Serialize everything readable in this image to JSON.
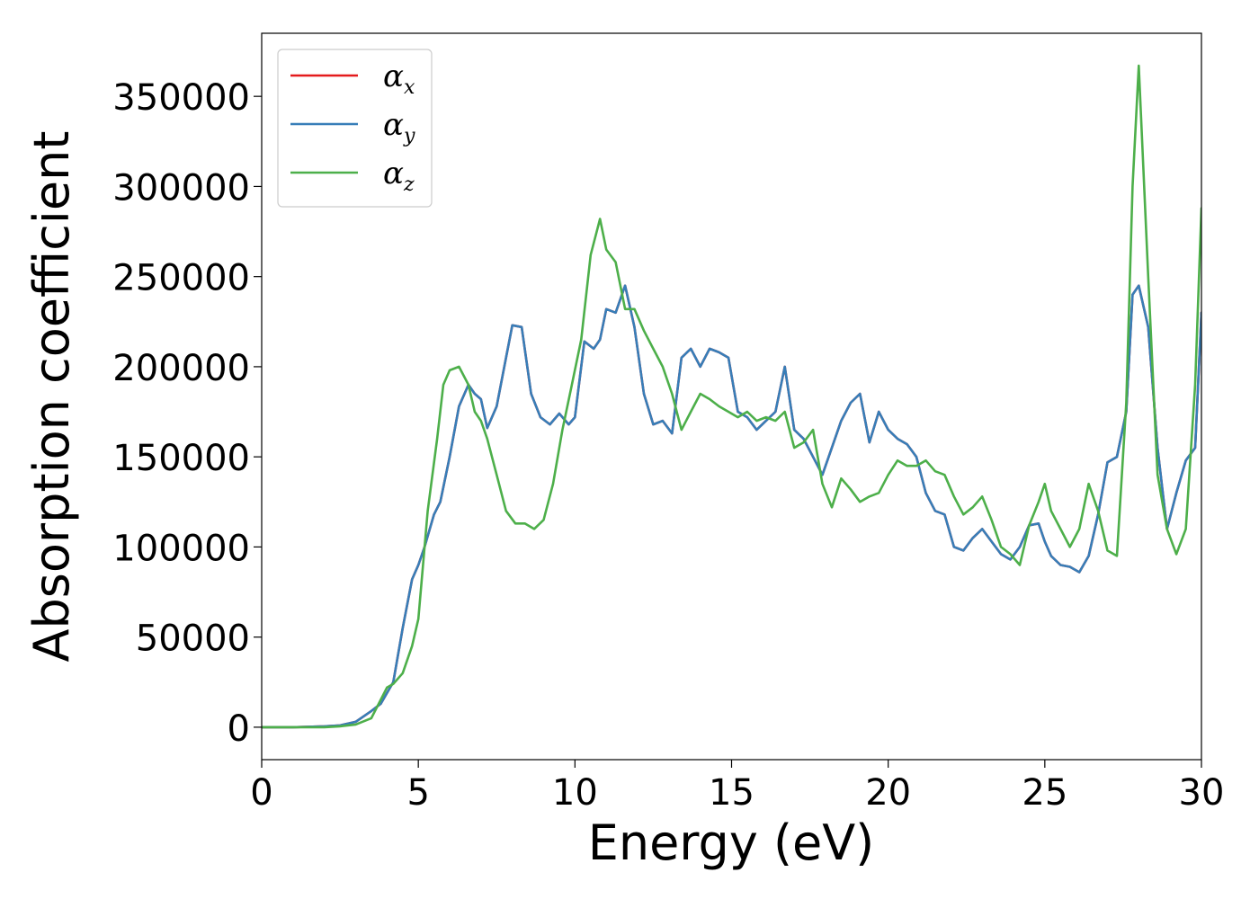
{
  "chart_data": {
    "type": "line",
    "title": "",
    "xlabel": "Energy (eV)",
    "ylabel": "Absorption coefficient",
    "xlim": [
      0,
      30
    ],
    "ylim": [
      -18000,
      385000
    ],
    "x_ticks": [
      0,
      5,
      10,
      15,
      20,
      25,
      30
    ],
    "y_ticks": [
      0,
      50000,
      100000,
      150000,
      200000,
      250000,
      300000,
      350000
    ],
    "grid": false,
    "legend_position": "top-left",
    "series": [
      {
        "name": "α_x",
        "label_base": "α",
        "label_sub": "x",
        "color": "#e41a1c",
        "x": [
          0,
          1,
          2,
          2.5,
          3,
          3.5,
          3.8,
          4.2,
          4.5,
          4.8,
          5.0,
          5.2,
          5.5,
          5.7,
          6.0,
          6.3,
          6.6,
          6.8,
          7.0,
          7.2,
          7.5,
          7.8,
          8.0,
          8.3,
          8.6,
          8.9,
          9.2,
          9.5,
          9.8,
          10.0,
          10.3,
          10.6,
          10.8,
          11.0,
          11.3,
          11.6,
          11.9,
          12.2,
          12.5,
          12.8,
          13.1,
          13.4,
          13.7,
          14.0,
          14.3,
          14.6,
          14.9,
          15.2,
          15.5,
          15.8,
          16.1,
          16.4,
          16.7,
          17.0,
          17.3,
          17.6,
          17.9,
          18.2,
          18.5,
          18.8,
          19.1,
          19.4,
          19.7,
          20.0,
          20.3,
          20.6,
          20.9,
          21.2,
          21.5,
          21.8,
          22.1,
          22.4,
          22.7,
          23.0,
          23.3,
          23.6,
          23.9,
          24.2,
          24.5,
          24.8,
          25.0,
          25.2,
          25.5,
          25.8,
          26.1,
          26.4,
          26.7,
          27.0,
          27.3,
          27.6,
          27.8,
          28.0,
          28.3,
          28.6,
          28.9,
          29.2,
          29.5,
          29.8,
          30.0
        ],
        "values": [
          0,
          0,
          500,
          1000,
          3000,
          9000,
          13000,
          25000,
          55000,
          82000,
          90000,
          100000,
          118000,
          125000,
          150000,
          178000,
          190000,
          185000,
          182000,
          166000,
          178000,
          205000,
          223000,
          222000,
          185000,
          172000,
          168000,
          174000,
          168000,
          172000,
          214000,
          210000,
          215000,
          232000,
          230000,
          245000,
          222000,
          185000,
          168000,
          170000,
          163000,
          205000,
          210000,
          200000,
          210000,
          208000,
          205000,
          175000,
          172000,
          165000,
          170000,
          175000,
          200000,
          165000,
          160000,
          150000,
          140000,
          155000,
          170000,
          180000,
          185000,
          158000,
          175000,
          165000,
          160000,
          157000,
          150000,
          130000,
          120000,
          118000,
          100000,
          98000,
          105000,
          110000,
          103000,
          96000,
          93000,
          100000,
          112000,
          113000,
          103000,
          95000,
          90000,
          89000,
          86000,
          95000,
          118000,
          147000,
          150000,
          175000,
          240000,
          245000,
          222000,
          155000,
          110000,
          130000,
          148000,
          155000,
          230000
        ]
      },
      {
        "name": "α_y",
        "label_base": "α",
        "label_sub": "y",
        "color": "#377eb8",
        "x": [
          0,
          1,
          2,
          2.5,
          3,
          3.5,
          3.8,
          4.2,
          4.5,
          4.8,
          5.0,
          5.2,
          5.5,
          5.7,
          6.0,
          6.3,
          6.6,
          6.8,
          7.0,
          7.2,
          7.5,
          7.8,
          8.0,
          8.3,
          8.6,
          8.9,
          9.2,
          9.5,
          9.8,
          10.0,
          10.3,
          10.6,
          10.8,
          11.0,
          11.3,
          11.6,
          11.9,
          12.2,
          12.5,
          12.8,
          13.1,
          13.4,
          13.7,
          14.0,
          14.3,
          14.6,
          14.9,
          15.2,
          15.5,
          15.8,
          16.1,
          16.4,
          16.7,
          17.0,
          17.3,
          17.6,
          17.9,
          18.2,
          18.5,
          18.8,
          19.1,
          19.4,
          19.7,
          20.0,
          20.3,
          20.6,
          20.9,
          21.2,
          21.5,
          21.8,
          22.1,
          22.4,
          22.7,
          23.0,
          23.3,
          23.6,
          23.9,
          24.2,
          24.5,
          24.8,
          25.0,
          25.2,
          25.5,
          25.8,
          26.1,
          26.4,
          26.7,
          27.0,
          27.3,
          27.6,
          27.8,
          28.0,
          28.3,
          28.6,
          28.9,
          29.2,
          29.5,
          29.8,
          30.0
        ],
        "values": [
          0,
          0,
          500,
          1000,
          3000,
          9000,
          13000,
          25000,
          55000,
          82000,
          90000,
          100000,
          118000,
          125000,
          150000,
          178000,
          190000,
          185000,
          182000,
          166000,
          178000,
          205000,
          223000,
          222000,
          185000,
          172000,
          168000,
          174000,
          168000,
          172000,
          214000,
          210000,
          215000,
          232000,
          230000,
          245000,
          222000,
          185000,
          168000,
          170000,
          163000,
          205000,
          210000,
          200000,
          210000,
          208000,
          205000,
          175000,
          172000,
          165000,
          170000,
          175000,
          200000,
          165000,
          160000,
          150000,
          140000,
          155000,
          170000,
          180000,
          185000,
          158000,
          175000,
          165000,
          160000,
          157000,
          150000,
          130000,
          120000,
          118000,
          100000,
          98000,
          105000,
          110000,
          103000,
          96000,
          93000,
          100000,
          112000,
          113000,
          103000,
          95000,
          90000,
          89000,
          86000,
          95000,
          118000,
          147000,
          150000,
          175000,
          240000,
          245000,
          222000,
          155000,
          110000,
          130000,
          148000,
          155000,
          230000
        ]
      },
      {
        "name": "α_z",
        "label_base": "α",
        "label_sub": "z",
        "color": "#4daf4a",
        "x": [
          0,
          1,
          2,
          2.5,
          3,
          3.5,
          4.0,
          4.2,
          4.5,
          4.8,
          5.0,
          5.3,
          5.6,
          5.8,
          6.0,
          6.3,
          6.6,
          6.8,
          7.0,
          7.2,
          7.5,
          7.8,
          8.1,
          8.4,
          8.7,
          9.0,
          9.3,
          9.6,
          9.9,
          10.2,
          10.5,
          10.8,
          11.0,
          11.3,
          11.6,
          11.9,
          12.2,
          12.5,
          12.8,
          13.1,
          13.4,
          13.7,
          14.0,
          14.3,
          14.6,
          14.9,
          15.2,
          15.5,
          15.8,
          16.1,
          16.4,
          16.7,
          17.0,
          17.3,
          17.6,
          17.9,
          18.2,
          18.5,
          18.8,
          19.1,
          19.4,
          19.7,
          20.0,
          20.3,
          20.6,
          20.9,
          21.2,
          21.5,
          21.8,
          22.1,
          22.4,
          22.7,
          23.0,
          23.3,
          23.6,
          23.9,
          24.2,
          24.5,
          24.8,
          25.0,
          25.2,
          25.5,
          25.8,
          26.1,
          26.4,
          26.7,
          27.0,
          27.3,
          27.6,
          27.8,
          28.0,
          28.3,
          28.6,
          28.9,
          29.2,
          29.5,
          29.8,
          30.0
        ],
        "values": [
          0,
          0,
          0,
          500,
          1500,
          5000,
          22000,
          24000,
          30000,
          45000,
          60000,
          120000,
          160000,
          190000,
          198000,
          200000,
          190000,
          175000,
          170000,
          160000,
          140000,
          120000,
          113000,
          113000,
          110000,
          115000,
          135000,
          165000,
          190000,
          215000,
          262000,
          282000,
          265000,
          258000,
          232000,
          232000,
          220000,
          210000,
          200000,
          185000,
          165000,
          175000,
          185000,
          182000,
          178000,
          175000,
          172000,
          175000,
          170000,
          172000,
          170000,
          175000,
          155000,
          158000,
          165000,
          135000,
          122000,
          138000,
          132000,
          125000,
          128000,
          130000,
          140000,
          148000,
          145000,
          145000,
          148000,
          142000,
          140000,
          128000,
          118000,
          122000,
          128000,
          115000,
          100000,
          96000,
          90000,
          112000,
          125000,
          135000,
          120000,
          110000,
          100000,
          110000,
          135000,
          120000,
          98000,
          95000,
          180000,
          300000,
          367000,
          250000,
          140000,
          110000,
          96000,
          110000,
          190000,
          288000
        ]
      }
    ]
  }
}
